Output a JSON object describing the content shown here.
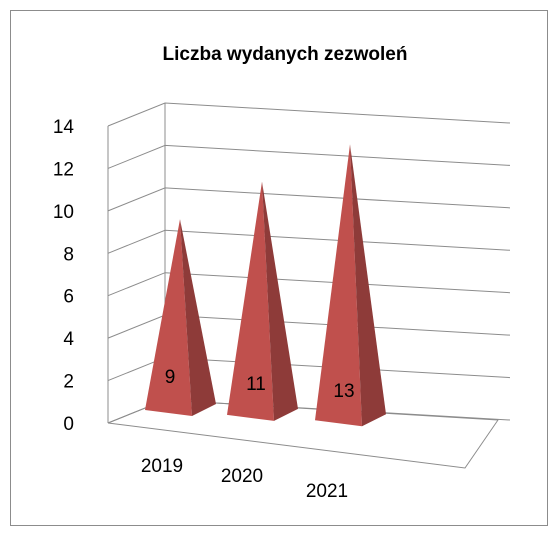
{
  "chart_data": {
    "type": "pyramid3d",
    "title": "Liczba wydanych zezwoleń",
    "categories": [
      "2019",
      "2020",
      "2021"
    ],
    "values": [
      9,
      11,
      13
    ],
    "color": "#c0504d",
    "ylim": [
      0,
      14
    ],
    "yticks": [
      0,
      2,
      4,
      6,
      8,
      10,
      12,
      14
    ],
    "grid": true
  }
}
